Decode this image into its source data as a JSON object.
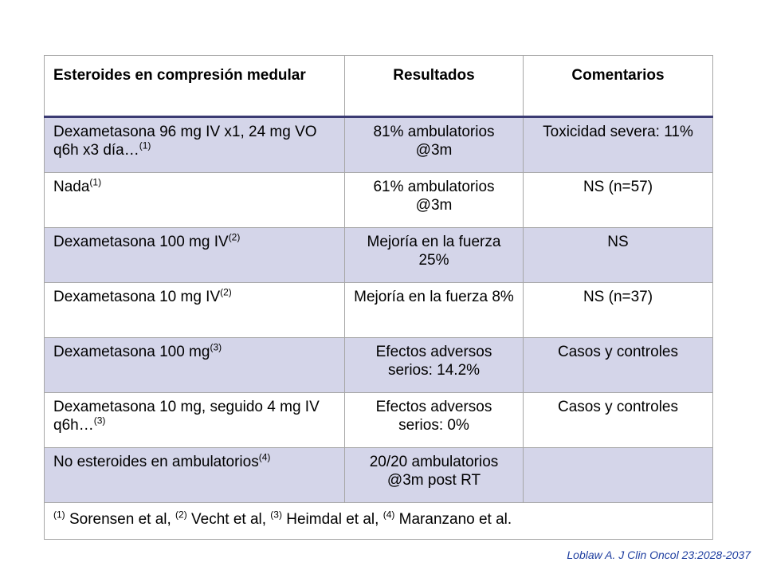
{
  "table": {
    "headers": [
      "Esteroides en compresión medular",
      "Resultados",
      "Comentarios"
    ],
    "rows": [
      {
        "treatment": "Dexametasona 96 mg IV x1, 24 mg VO q6h x3 día…",
        "ref": "(1)",
        "result": "81% ambulatorios @3m",
        "comment": "Toxicidad severa: 11%"
      },
      {
        "treatment": "Nada",
        "ref": "(1)",
        "result": "61% ambulatorios @3m",
        "comment": "NS (n=57)"
      },
      {
        "treatment": "Dexametasona 100 mg IV",
        "ref": "(2)",
        "result": "Mejoría en la fuerza 25%",
        "comment": "NS"
      },
      {
        "treatment": "Dexametasona 10 mg IV",
        "ref": "(2)",
        "result": "Mejoría en la fuerza 8%",
        "comment": "NS (n=37)"
      },
      {
        "treatment": "Dexametasona 100 mg",
        "ref": "(3)",
        "result": "Efectos adversos serios: 14.2%",
        "comment": "Casos y controles"
      },
      {
        "treatment": "Dexametasona 10 mg, seguido 4 mg IV q6h…",
        "ref": "(3)",
        "result": "Efectos adversos serios: 0%",
        "comment": "Casos y controles"
      },
      {
        "treatment": "No esteroides en ambulatorios",
        "ref": "(4)",
        "result": "20/20 ambulatorios @3m post RT",
        "comment": ""
      }
    ],
    "footnotes": [
      {
        "mark": "(1)",
        "text": " Sorensen et al, "
      },
      {
        "mark": "(2)",
        "text": " Vecht et al, "
      },
      {
        "mark": "(3)",
        "text": " Heimdal et al, "
      },
      {
        "mark": "(4)",
        "text": " Maranzano et al."
      }
    ]
  },
  "citation": "Loblaw A. J Clin Oncol 23:2028-2037",
  "colors": {
    "shaded_row": "#d4d5e9",
    "header_rule": "#3b3b73",
    "citation": "#1f3fa0"
  }
}
